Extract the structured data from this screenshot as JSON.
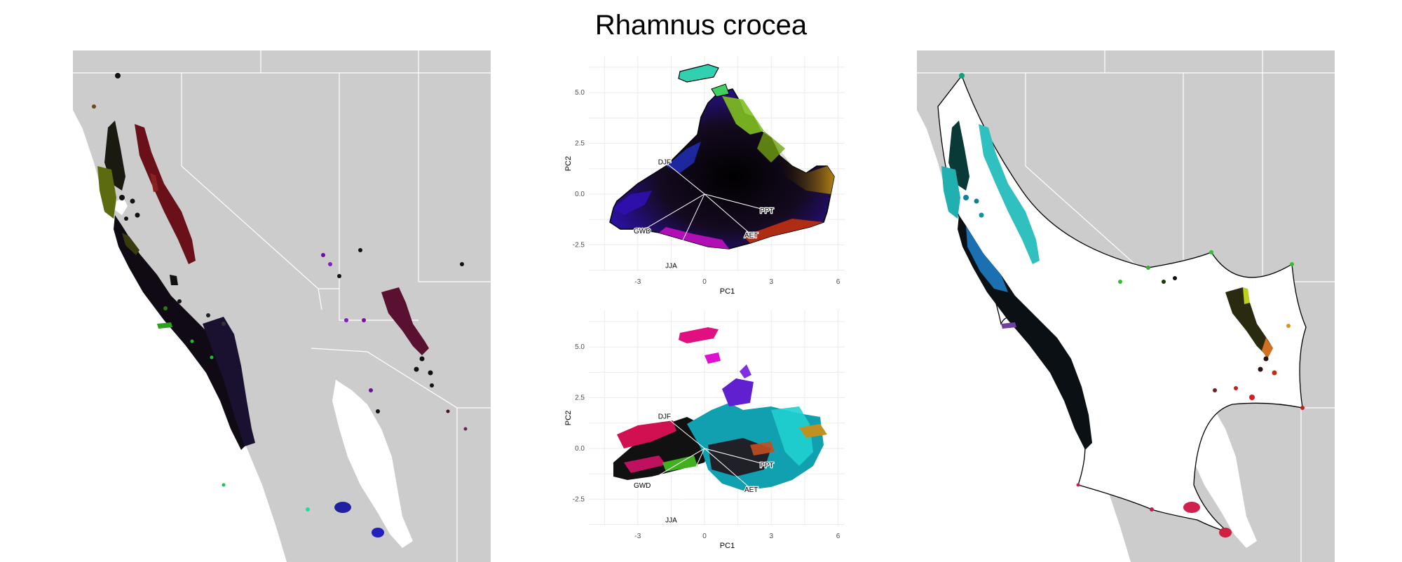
{
  "title": "Rhamnus crocea",
  "colors": {
    "land": "#cccccc",
    "border": "#ffffff",
    "grid": "#ebebeb",
    "arrow": "#ffffff",
    "hull": "#000000"
  },
  "chart_data": [
    {
      "type": "scatter",
      "id": "pca-rgb",
      "xlabel": "PC1",
      "ylabel": "PC2",
      "xticks": [
        -3,
        0,
        3,
        6
      ],
      "yticks": [
        -2.5,
        0.0,
        2.5,
        5.0
      ],
      "xtick_labels": [
        "-3",
        "0",
        "3",
        "6"
      ],
      "ytick_labels": [
        "-2.5",
        "0.0",
        "2.5",
        "5.0"
      ],
      "xlim": [
        -5.2,
        6.3
      ],
      "ylim": [
        -3.8,
        6.8
      ],
      "grid": true,
      "loadings": [
        {
          "label": "DJF",
          "x": -1.8,
          "y": 1.6
        },
        {
          "label": "PPT",
          "x": 2.8,
          "y": -0.8
        },
        {
          "label": "AET",
          "x": 2.1,
          "y": -2.0
        },
        {
          "label": "GWD",
          "x": -2.8,
          "y": -1.8
        },
        {
          "label": "JJA",
          "x": -1.5,
          "y": -3.5
        }
      ]
    },
    {
      "type": "scatter",
      "id": "pca-clusters",
      "xlabel": "PC1",
      "ylabel": "PC2",
      "xticks": [
        -3,
        0,
        3,
        6
      ],
      "yticks": [
        -2.5,
        0.0,
        2.5,
        5.0
      ],
      "xtick_labels": [
        "-3",
        "0",
        "3",
        "6"
      ],
      "ytick_labels": [
        "-2.5",
        "0.0",
        "2.5",
        "5.0"
      ],
      "xlim": [
        -5.2,
        6.3
      ],
      "ylim": [
        -3.8,
        6.8
      ],
      "grid": true,
      "loadings": [
        {
          "label": "DJF",
          "x": -1.8,
          "y": 1.6
        },
        {
          "label": "PPT",
          "x": 2.8,
          "y": -0.8
        },
        {
          "label": "AET",
          "x": 2.1,
          "y": -2.0
        },
        {
          "label": "GWD",
          "x": -2.8,
          "y": -1.8
        },
        {
          "label": "JJA",
          "x": -1.5,
          "y": -3.5
        }
      ]
    }
  ]
}
